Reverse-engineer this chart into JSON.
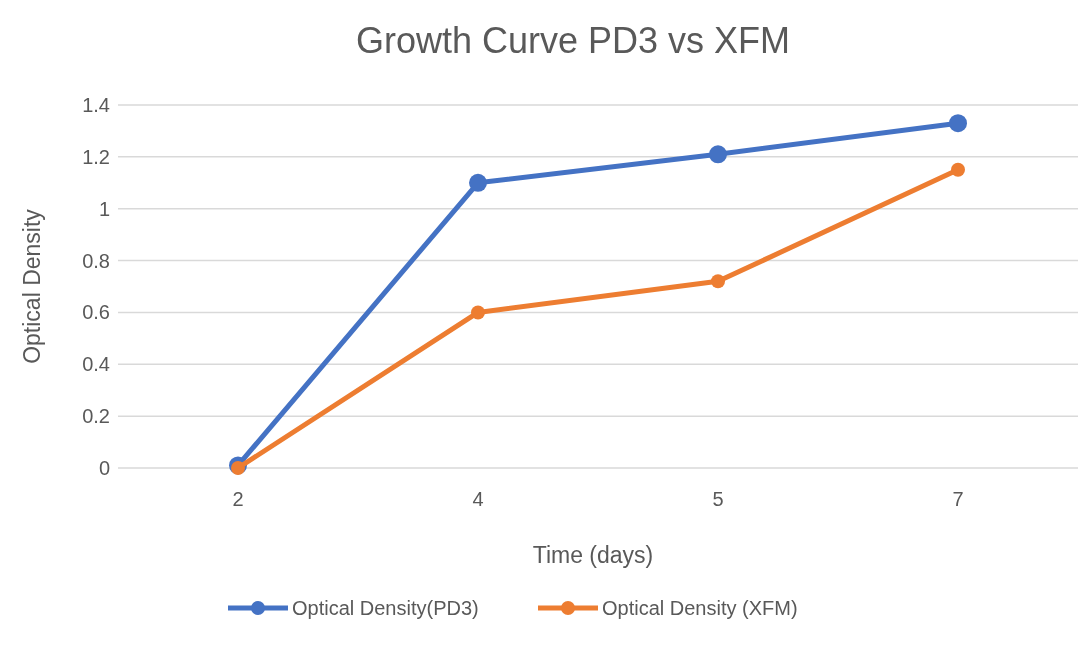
{
  "chart_data": {
    "type": "line",
    "title": "Growth Curve PD3 vs XFM",
    "xlabel": "Time (days)",
    "ylabel": "Optical Density",
    "categories": [
      "2",
      "4",
      "5",
      "7"
    ],
    "series": [
      {
        "name": "Optical Density(PD3)",
        "color": "#4472c4",
        "values": [
          0.01,
          1.1,
          1.21,
          1.33
        ]
      },
      {
        "name": "Optical Density (XFM)",
        "color": "#ed7d31",
        "values": [
          0,
          0.6,
          0.72,
          1.15
        ]
      }
    ],
    "ylim": [
      0,
      1.4
    ],
    "yticks": [
      0,
      0.2,
      0.4,
      0.6,
      0.8,
      1,
      1.2,
      1.4
    ],
    "grid": "y",
    "legend": "bottom",
    "marker": "circle",
    "line_style": "solid"
  }
}
